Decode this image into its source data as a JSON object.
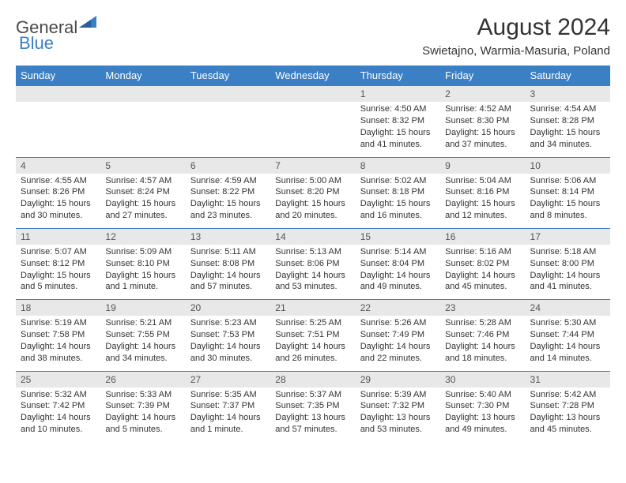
{
  "logo": {
    "text1": "General",
    "text2": "Blue"
  },
  "title": "August 2024",
  "location": "Swietajno, Warmia-Masuria, Poland",
  "colors": {
    "header_bg": "#3b7fc4",
    "header_text": "#ffffff",
    "daynum_bg": "#e8e8e8",
    "row_border": "#3b7fc4",
    "page_bg": "#ffffff",
    "text": "#333333"
  },
  "weekdays": [
    "Sunday",
    "Monday",
    "Tuesday",
    "Wednesday",
    "Thursday",
    "Friday",
    "Saturday"
  ],
  "weeks": [
    {
      "nums": [
        "",
        "",
        "",
        "",
        "1",
        "2",
        "3"
      ],
      "cells": [
        {
          "sunrise": "",
          "sunset": "",
          "daylight": ""
        },
        {
          "sunrise": "",
          "sunset": "",
          "daylight": ""
        },
        {
          "sunrise": "",
          "sunset": "",
          "daylight": ""
        },
        {
          "sunrise": "",
          "sunset": "",
          "daylight": ""
        },
        {
          "sunrise": "Sunrise: 4:50 AM",
          "sunset": "Sunset: 8:32 PM",
          "daylight": "Daylight: 15 hours and 41 minutes."
        },
        {
          "sunrise": "Sunrise: 4:52 AM",
          "sunset": "Sunset: 8:30 PM",
          "daylight": "Daylight: 15 hours and 37 minutes."
        },
        {
          "sunrise": "Sunrise: 4:54 AM",
          "sunset": "Sunset: 8:28 PM",
          "daylight": "Daylight: 15 hours and 34 minutes."
        }
      ]
    },
    {
      "nums": [
        "4",
        "5",
        "6",
        "7",
        "8",
        "9",
        "10"
      ],
      "cells": [
        {
          "sunrise": "Sunrise: 4:55 AM",
          "sunset": "Sunset: 8:26 PM",
          "daylight": "Daylight: 15 hours and 30 minutes."
        },
        {
          "sunrise": "Sunrise: 4:57 AM",
          "sunset": "Sunset: 8:24 PM",
          "daylight": "Daylight: 15 hours and 27 minutes."
        },
        {
          "sunrise": "Sunrise: 4:59 AM",
          "sunset": "Sunset: 8:22 PM",
          "daylight": "Daylight: 15 hours and 23 minutes."
        },
        {
          "sunrise": "Sunrise: 5:00 AM",
          "sunset": "Sunset: 8:20 PM",
          "daylight": "Daylight: 15 hours and 20 minutes."
        },
        {
          "sunrise": "Sunrise: 5:02 AM",
          "sunset": "Sunset: 8:18 PM",
          "daylight": "Daylight: 15 hours and 16 minutes."
        },
        {
          "sunrise": "Sunrise: 5:04 AM",
          "sunset": "Sunset: 8:16 PM",
          "daylight": "Daylight: 15 hours and 12 minutes."
        },
        {
          "sunrise": "Sunrise: 5:06 AM",
          "sunset": "Sunset: 8:14 PM",
          "daylight": "Daylight: 15 hours and 8 minutes."
        }
      ]
    },
    {
      "nums": [
        "11",
        "12",
        "13",
        "14",
        "15",
        "16",
        "17"
      ],
      "cells": [
        {
          "sunrise": "Sunrise: 5:07 AM",
          "sunset": "Sunset: 8:12 PM",
          "daylight": "Daylight: 15 hours and 5 minutes."
        },
        {
          "sunrise": "Sunrise: 5:09 AM",
          "sunset": "Sunset: 8:10 PM",
          "daylight": "Daylight: 15 hours and 1 minute."
        },
        {
          "sunrise": "Sunrise: 5:11 AM",
          "sunset": "Sunset: 8:08 PM",
          "daylight": "Daylight: 14 hours and 57 minutes."
        },
        {
          "sunrise": "Sunrise: 5:13 AM",
          "sunset": "Sunset: 8:06 PM",
          "daylight": "Daylight: 14 hours and 53 minutes."
        },
        {
          "sunrise": "Sunrise: 5:14 AM",
          "sunset": "Sunset: 8:04 PM",
          "daylight": "Daylight: 14 hours and 49 minutes."
        },
        {
          "sunrise": "Sunrise: 5:16 AM",
          "sunset": "Sunset: 8:02 PM",
          "daylight": "Daylight: 14 hours and 45 minutes."
        },
        {
          "sunrise": "Sunrise: 5:18 AM",
          "sunset": "Sunset: 8:00 PM",
          "daylight": "Daylight: 14 hours and 41 minutes."
        }
      ]
    },
    {
      "nums": [
        "18",
        "19",
        "20",
        "21",
        "22",
        "23",
        "24"
      ],
      "cells": [
        {
          "sunrise": "Sunrise: 5:19 AM",
          "sunset": "Sunset: 7:58 PM",
          "daylight": "Daylight: 14 hours and 38 minutes."
        },
        {
          "sunrise": "Sunrise: 5:21 AM",
          "sunset": "Sunset: 7:55 PM",
          "daylight": "Daylight: 14 hours and 34 minutes."
        },
        {
          "sunrise": "Sunrise: 5:23 AM",
          "sunset": "Sunset: 7:53 PM",
          "daylight": "Daylight: 14 hours and 30 minutes."
        },
        {
          "sunrise": "Sunrise: 5:25 AM",
          "sunset": "Sunset: 7:51 PM",
          "daylight": "Daylight: 14 hours and 26 minutes."
        },
        {
          "sunrise": "Sunrise: 5:26 AM",
          "sunset": "Sunset: 7:49 PM",
          "daylight": "Daylight: 14 hours and 22 minutes."
        },
        {
          "sunrise": "Sunrise: 5:28 AM",
          "sunset": "Sunset: 7:46 PM",
          "daylight": "Daylight: 14 hours and 18 minutes."
        },
        {
          "sunrise": "Sunrise: 5:30 AM",
          "sunset": "Sunset: 7:44 PM",
          "daylight": "Daylight: 14 hours and 14 minutes."
        }
      ]
    },
    {
      "nums": [
        "25",
        "26",
        "27",
        "28",
        "29",
        "30",
        "31"
      ],
      "cells": [
        {
          "sunrise": "Sunrise: 5:32 AM",
          "sunset": "Sunset: 7:42 PM",
          "daylight": "Daylight: 14 hours and 10 minutes."
        },
        {
          "sunrise": "Sunrise: 5:33 AM",
          "sunset": "Sunset: 7:39 PM",
          "daylight": "Daylight: 14 hours and 5 minutes."
        },
        {
          "sunrise": "Sunrise: 5:35 AM",
          "sunset": "Sunset: 7:37 PM",
          "daylight": "Daylight: 14 hours and 1 minute."
        },
        {
          "sunrise": "Sunrise: 5:37 AM",
          "sunset": "Sunset: 7:35 PM",
          "daylight": "Daylight: 13 hours and 57 minutes."
        },
        {
          "sunrise": "Sunrise: 5:39 AM",
          "sunset": "Sunset: 7:32 PM",
          "daylight": "Daylight: 13 hours and 53 minutes."
        },
        {
          "sunrise": "Sunrise: 5:40 AM",
          "sunset": "Sunset: 7:30 PM",
          "daylight": "Daylight: 13 hours and 49 minutes."
        },
        {
          "sunrise": "Sunrise: 5:42 AM",
          "sunset": "Sunset: 7:28 PM",
          "daylight": "Daylight: 13 hours and 45 minutes."
        }
      ]
    }
  ]
}
